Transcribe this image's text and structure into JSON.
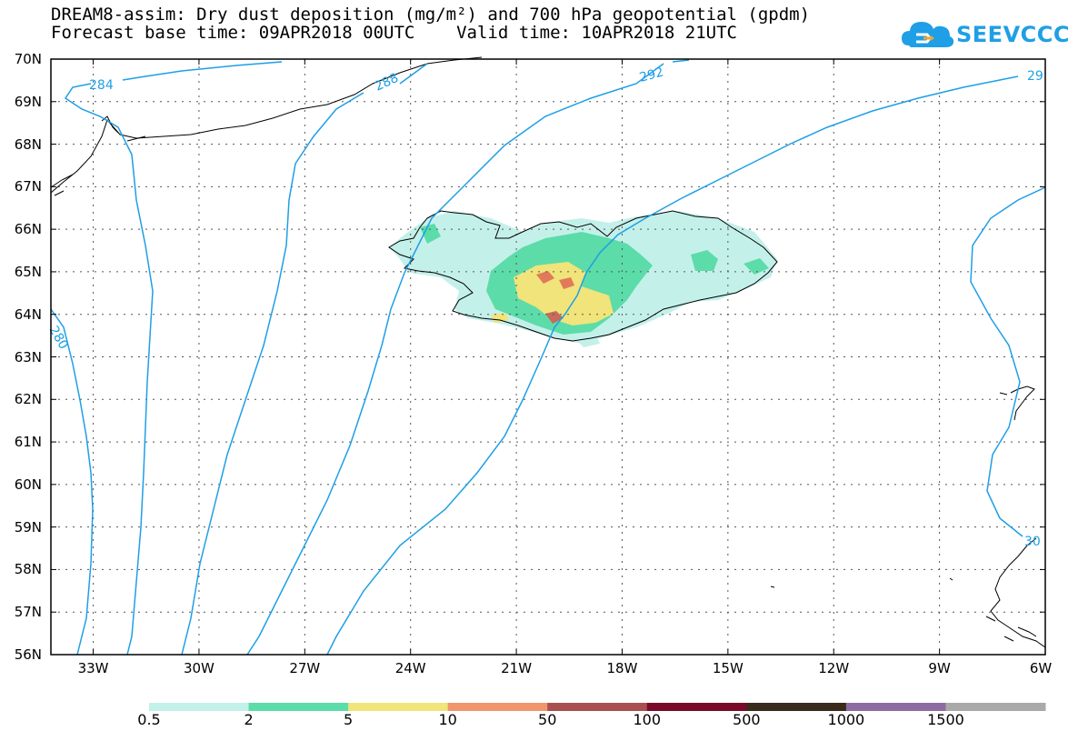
{
  "title": {
    "line1": "DREAM8-assim: Dry dust deposition (mg/m²) and 700 hPa geopotential (gpdm)",
    "line2": "Forecast base time: 09APR2018 00UTC    Valid time: 10APR2018 21UTC"
  },
  "logo": {
    "text": "SEEVCCC",
    "color": "#1e9fe6"
  },
  "axes": {
    "lat_labels": [
      "70N",
      "69N",
      "68N",
      "67N",
      "66N",
      "65N",
      "64N",
      "63N",
      "62N",
      "61N",
      "60N",
      "59N",
      "58N",
      "57N",
      "56N"
    ],
    "lon_labels": [
      "33W",
      "30W",
      "27W",
      "24W",
      "21W",
      "18W",
      "15W",
      "12W",
      "9W",
      "6W"
    ],
    "lat_range": [
      56,
      70
    ],
    "lon_range": [
      -34.2,
      -6
    ],
    "grid": "dotted"
  },
  "contour_labels": [
    "284",
    "288",
    "292",
    "29",
    "280",
    "30"
  ],
  "contour_color": "#1e9fe6",
  "colorbar": {
    "labels": [
      "0.5",
      "2",
      "5",
      "10",
      "50",
      "100",
      "500",
      "1000",
      "1500"
    ],
    "colors": [
      "#c4f0ea",
      "#5cdca8",
      "#f0e47a",
      "#f0966c",
      "#a85050",
      "#7a0a2a",
      "#3a2a1a",
      "#8e6aa2",
      "#a9a9a9"
    ]
  }
}
